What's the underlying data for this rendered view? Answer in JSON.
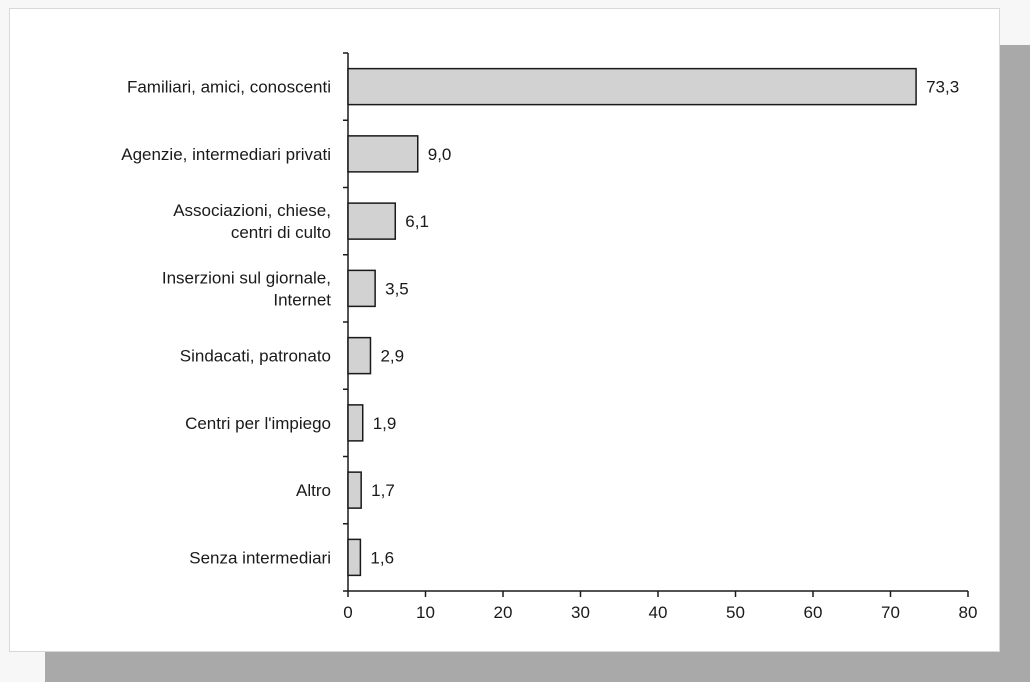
{
  "chart_data": {
    "type": "bar",
    "orientation": "horizontal",
    "categories": [
      [
        "Familiari, amici, conoscenti"
      ],
      [
        "Agenzie, intermediari privati"
      ],
      [
        "Associazioni, chiese,",
        "centri di culto"
      ],
      [
        "Inserzioni sul giornale,",
        "Internet"
      ],
      [
        "Sindacati, patronato"
      ],
      [
        "Centri per l'impiego"
      ],
      [
        "Altro"
      ],
      [
        "Senza intermediari"
      ]
    ],
    "values": [
      73.3,
      9.0,
      6.1,
      3.5,
      2.9,
      1.9,
      1.7,
      1.6
    ],
    "value_labels": [
      "73,3",
      "9,0",
      "6,1",
      "3,5",
      "2,9",
      "1,9",
      "1,7",
      "1,6"
    ],
    "x_ticks": [
      0,
      10,
      20,
      30,
      40,
      50,
      60,
      70,
      80
    ],
    "xlim": [
      0,
      80
    ],
    "grid": false,
    "colors": {
      "bar_fill": "#d2d2d2",
      "bar_stroke": "#1a1a1a",
      "axis": "#1a1a1a"
    }
  }
}
